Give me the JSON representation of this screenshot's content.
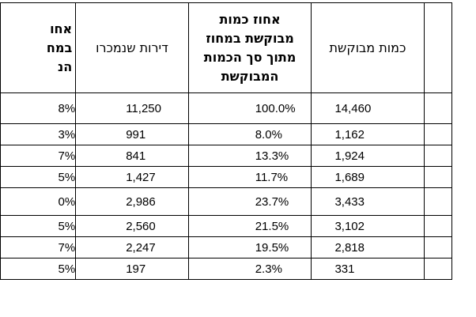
{
  "table": {
    "headers": {
      "requested_qty": "כמות מבוקשת",
      "pct_requested_region": [
        "אחוז כמות",
        "מבוקשת במחוז",
        "מתוך סך הכמות",
        "המבוקשת"
      ],
      "apartments_sold": "דירות שנמכרו",
      "pct_region_partial": [
        "אחו",
        "במח",
        "הנ"
      ]
    },
    "rows": [
      {
        "requested": "14,460",
        "pct": "100.0%",
        "sold": "11,250",
        "pct_sold": "8%"
      },
      {
        "requested": "1,162",
        "pct": "8.0%",
        "sold": "991",
        "pct_sold": "3%"
      },
      {
        "requested": "1,924",
        "pct": "13.3%",
        "sold": "841",
        "pct_sold": "7%"
      },
      {
        "requested": "1,689",
        "pct": "11.7%",
        "sold": "1,427",
        "pct_sold": "5%"
      },
      {
        "requested": "3,433",
        "pct": "23.7%",
        "sold": "2,986",
        "pct_sold": "0%"
      },
      {
        "requested": "3,102",
        "pct": "21.5%",
        "sold": "2,560",
        "pct_sold": "5%"
      },
      {
        "requested": "2,818",
        "pct": "19.5%",
        "sold": "2,247",
        "pct_sold": "7%"
      },
      {
        "requested": "331",
        "pct": "2.3%",
        "sold": "197",
        "pct_sold": "5%"
      }
    ]
  }
}
